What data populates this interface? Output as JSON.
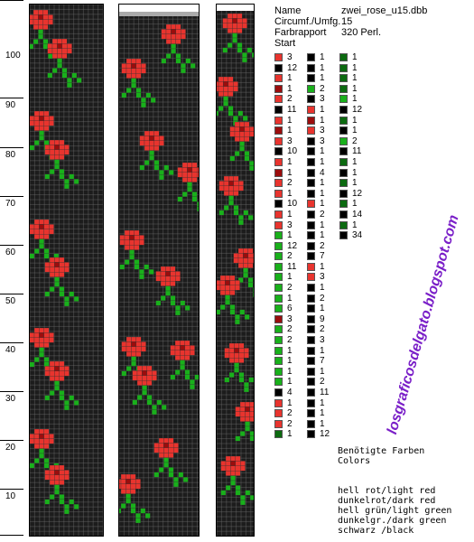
{
  "ruler": [
    "100",
    "90",
    "80",
    "70",
    "60",
    "50",
    "40",
    "30",
    "20",
    "10"
  ],
  "info": [
    {
      "label": "Name",
      "value": "zwei_rose_u15.dbb"
    },
    {
      "label": "Circumf./Umfg.",
      "value": "15"
    },
    {
      "label": "Farbrapport",
      "value": "320 Perl."
    },
    {
      "label": "Start",
      "value": ""
    }
  ],
  "colors": {
    "light_red": "#e8342e",
    "dark_red": "#9b0d0d",
    "light_green": "#19b01b",
    "dark_green": "#0c6a10",
    "black": "#000000",
    "bg": "#1c1c1c"
  },
  "beads": {
    "col1": [
      [
        "lr",
        "3"
      ],
      [
        "bk",
        "12"
      ],
      [
        "lr",
        "1"
      ],
      [
        "dr",
        "1"
      ],
      [
        "lr",
        "2"
      ],
      [
        "bk",
        "11"
      ],
      [
        "lr",
        "1"
      ],
      [
        "dr",
        "1"
      ],
      [
        "lr",
        "3"
      ],
      [
        "bk",
        "10"
      ],
      [
        "lr",
        "1"
      ],
      [
        "dr",
        "1"
      ],
      [
        "lr",
        "2"
      ],
      [
        "lr",
        "1"
      ],
      [
        "bk",
        "10"
      ],
      [
        "lr",
        "1"
      ],
      [
        "lr",
        "3"
      ],
      [
        "lg",
        "1"
      ],
      [
        "lg",
        "12"
      ],
      [
        "lg",
        "2"
      ],
      [
        "lg",
        "11"
      ],
      [
        "lg",
        "1"
      ],
      [
        "lg",
        "2"
      ],
      [
        "lg",
        "1"
      ],
      [
        "lg",
        "6"
      ],
      [
        "dr",
        "3"
      ],
      [
        "lg",
        "2"
      ],
      [
        "lg",
        "2"
      ],
      [
        "lg",
        "1"
      ],
      [
        "lg",
        "1"
      ],
      [
        "lg",
        "1"
      ],
      [
        "lg",
        "1"
      ],
      [
        "bk",
        "4"
      ],
      [
        "lr",
        "1"
      ],
      [
        "lr",
        "2"
      ],
      [
        "lr",
        "2"
      ],
      [
        "dg",
        "1"
      ]
    ],
    "col2": [
      [
        "bk",
        "1"
      ],
      [
        "bk",
        "1"
      ],
      [
        "bk",
        "1"
      ],
      [
        "lg",
        "2"
      ],
      [
        "bk",
        "3"
      ],
      [
        "lr",
        "1"
      ],
      [
        "dr",
        "1"
      ],
      [
        "lr",
        "3"
      ],
      [
        "bk",
        "3"
      ],
      [
        "bk",
        "1"
      ],
      [
        "bk",
        "1"
      ],
      [
        "bk",
        "4"
      ],
      [
        "bk",
        "1"
      ],
      [
        "bk",
        "1"
      ],
      [
        "lr",
        "1"
      ],
      [
        "bk",
        "2"
      ],
      [
        "bk",
        "1"
      ],
      [
        "bk",
        "1"
      ],
      [
        "bk",
        "2"
      ],
      [
        "bk",
        "7"
      ],
      [
        "lr",
        "1"
      ],
      [
        "lr",
        "3"
      ],
      [
        "bk",
        "1"
      ],
      [
        "bk",
        "2"
      ],
      [
        "bk",
        "1"
      ],
      [
        "bk",
        "9"
      ],
      [
        "bk",
        "2"
      ],
      [
        "bk",
        "3"
      ],
      [
        "bk",
        "1"
      ],
      [
        "bk",
        "7"
      ],
      [
        "bk",
        "1"
      ],
      [
        "bk",
        "2"
      ],
      [
        "bk",
        "11"
      ],
      [
        "bk",
        "1"
      ],
      [
        "bk",
        "1"
      ],
      [
        "bk",
        "1"
      ],
      [
        "bk",
        "12"
      ]
    ],
    "col3": [
      [
        "dg",
        "1"
      ],
      [
        "dg",
        "1"
      ],
      [
        "dg",
        "1"
      ],
      [
        "dg",
        "1"
      ],
      [
        "lg",
        "1"
      ],
      [
        "bk",
        "12"
      ],
      [
        "dg",
        "1"
      ],
      [
        "bk",
        "1"
      ],
      [
        "lg",
        "2"
      ],
      [
        "bk",
        "11"
      ],
      [
        "dg",
        "1"
      ],
      [
        "bk",
        "1"
      ],
      [
        "dg",
        "1"
      ],
      [
        "bk",
        "12"
      ],
      [
        "dg",
        "1"
      ],
      [
        "bk",
        "14"
      ],
      [
        "dg",
        "1"
      ],
      [
        "bk",
        "34"
      ]
    ]
  },
  "legend": {
    "heading": "Benötigte Farben",
    "subheading": "Colors",
    "items": [
      "hell rot/light red",
      "dunkelrot/dark red",
      "hell grün/light green",
      "dunkelgr./dark green",
      "schwarz /black"
    ]
  },
  "blog": "losgraficosdelgato.blogspot.com"
}
